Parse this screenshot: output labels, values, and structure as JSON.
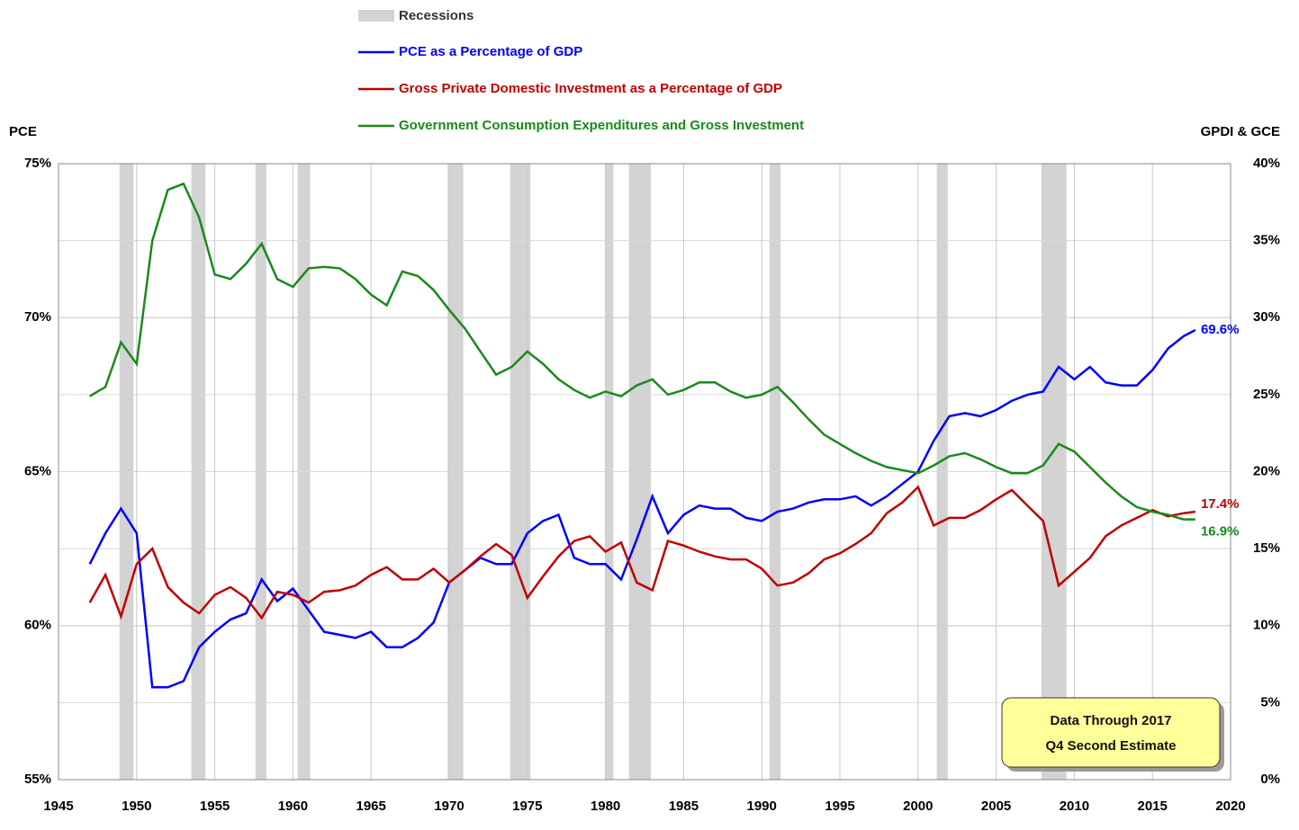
{
  "chart_data": {
    "type": "line",
    "y_label": "PCE",
    "y2_label": "GPDI & GCE",
    "xlim": [
      1945,
      2020
    ],
    "xticks": [
      1945,
      1950,
      1955,
      1960,
      1965,
      1970,
      1975,
      1980,
      1985,
      1990,
      1995,
      2000,
      2005,
      2010,
      2015,
      2020
    ],
    "ylim": [
      55,
      75
    ],
    "yticks": [
      {
        "value": 55,
        "label": "55%"
      },
      {
        "value": 60,
        "label": "60%"
      },
      {
        "value": 65,
        "label": "65%"
      },
      {
        "value": 70,
        "label": "70%"
      },
      {
        "value": 75,
        "label": "75%"
      }
    ],
    "y2lim": [
      0,
      40
    ],
    "y2ticks": [
      {
        "value": 0,
        "label": "0%"
      },
      {
        "value": 5,
        "label": "5%"
      },
      {
        "value": 10,
        "label": "10%"
      },
      {
        "value": 15,
        "label": "15%"
      },
      {
        "value": 20,
        "label": "20%"
      },
      {
        "value": 25,
        "label": "25%"
      },
      {
        "value": 30,
        "label": "30%"
      },
      {
        "value": 35,
        "label": "35%"
      },
      {
        "value": 40,
        "label": "40%"
      }
    ],
    "grid": true,
    "recessions": {
      "name": "Recessions",
      "color": "#d3d3d3",
      "periods": [
        [
          1948.9,
          1949.8
        ],
        [
          1953.5,
          1954.4
        ],
        [
          1957.6,
          1958.3
        ],
        [
          1960.3,
          1961.1
        ],
        [
          1969.9,
          1970.9
        ],
        [
          1973.9,
          1975.2
        ],
        [
          1980.0,
          1980.5
        ],
        [
          1981.5,
          1982.9
        ],
        [
          1990.5,
          1991.2
        ],
        [
          2001.2,
          2001.9
        ],
        [
          2007.9,
          2009.5
        ]
      ]
    },
    "x": [
      1947,
      1948,
      1949,
      1950,
      1951,
      1952,
      1953,
      1954,
      1955,
      1956,
      1957,
      1958,
      1959,
      1960,
      1961,
      1962,
      1963,
      1964,
      1965,
      1966,
      1967,
      1968,
      1969,
      1970,
      1971,
      1972,
      1973,
      1974,
      1975,
      1976,
      1977,
      1978,
      1979,
      1980,
      1981,
      1982,
      1983,
      1984,
      1985,
      1986,
      1987,
      1988,
      1989,
      1990,
      1991,
      1992,
      1993,
      1994,
      1995,
      1996,
      1997,
      1998,
      1999,
      2000,
      2001,
      2002,
      2003,
      2004,
      2005,
      2006,
      2007,
      2008,
      2009,
      2010,
      2011,
      2012,
      2013,
      2014,
      2015,
      2016,
      2017,
      2017.75
    ],
    "series": [
      {
        "name": "PCE as a Percentage of GDP",
        "color": "#0000ff",
        "axis": "y",
        "values": [
          62.0,
          63.0,
          63.8,
          63.0,
          58.0,
          58.0,
          58.2,
          59.3,
          59.8,
          60.2,
          60.4,
          61.5,
          60.8,
          61.2,
          60.5,
          59.8,
          59.7,
          59.6,
          59.8,
          59.3,
          59.3,
          59.6,
          60.1,
          61.4,
          61.8,
          62.2,
          62.0,
          62.0,
          63.0,
          63.4,
          63.6,
          62.2,
          62.0,
          62.0,
          61.5,
          62.8,
          64.2,
          63.0,
          63.6,
          63.9,
          63.8,
          63.8,
          63.5,
          63.4,
          63.7,
          63.8,
          64.0,
          64.1,
          64.1,
          64.2,
          63.9,
          64.2,
          64.6,
          65.0,
          66.0,
          66.8,
          66.9,
          66.8,
          67.0,
          67.3,
          67.5,
          67.6,
          68.4,
          68.0,
          68.4,
          67.9,
          67.8,
          67.8,
          68.3,
          69.0,
          69.4,
          69.6
        ],
        "value_labels": [
          null,
          null,
          null,
          null,
          null,
          null,
          null,
          null,
          null,
          null,
          null,
          null,
          null,
          null,
          null,
          null,
          null,
          null,
          null,
          null,
          null,
          null,
          null,
          null,
          null,
          null,
          null,
          null,
          null,
          null,
          null,
          null,
          null,
          null,
          null,
          null,
          null,
          null,
          null,
          null,
          null,
          null,
          null,
          null,
          null,
          null,
          null,
          null,
          null,
          null,
          null,
          null,
          null,
          null,
          null,
          null,
          null,
          null,
          null,
          null,
          null,
          null,
          null,
          null,
          null,
          null,
          null,
          null,
          null,
          null,
          null,
          "69.6%"
        ]
      },
      {
        "name": "Gross Private Domestic Investment as a Percentage of GDP",
        "color": "#c00000",
        "axis": "y2",
        "values": [
          11.5,
          13.3,
          10.6,
          14.0,
          15.0,
          12.5,
          11.5,
          10.8,
          12.0,
          12.5,
          11.8,
          10.5,
          12.2,
          12.0,
          11.5,
          12.2,
          12.3,
          12.6,
          13.3,
          13.8,
          13.0,
          13.0,
          13.7,
          12.8,
          13.6,
          14.5,
          15.3,
          14.6,
          11.8,
          13.2,
          14.5,
          15.5,
          15.8,
          14.8,
          15.4,
          12.8,
          12.3,
          15.5,
          15.2,
          14.8,
          14.5,
          14.3,
          14.3,
          13.7,
          12.6,
          12.8,
          13.4,
          14.3,
          14.7,
          15.3,
          16.0,
          17.3,
          18.0,
          19.0,
          16.5,
          17.0,
          17.0,
          17.5,
          18.2,
          18.8,
          17.8,
          16.8,
          12.6,
          13.5,
          14.4,
          15.8,
          16.5,
          17.0,
          17.5,
          17.1,
          17.3,
          17.4
        ],
        "value_labels": [
          null,
          null,
          null,
          null,
          null,
          null,
          null,
          null,
          null,
          null,
          null,
          null,
          null,
          null,
          null,
          null,
          null,
          null,
          null,
          null,
          null,
          null,
          null,
          null,
          null,
          null,
          null,
          null,
          null,
          null,
          null,
          null,
          null,
          null,
          null,
          null,
          null,
          null,
          null,
          null,
          null,
          null,
          null,
          null,
          null,
          null,
          null,
          null,
          null,
          null,
          null,
          null,
          null,
          null,
          null,
          null,
          null,
          null,
          null,
          null,
          null,
          null,
          null,
          null,
          null,
          null,
          null,
          null,
          null,
          null,
          null,
          "17.4%"
        ]
      },
      {
        "name": "Government Consumption Expenditures and Gross Investment",
        "color": "#1a8a1a",
        "axis": "y2",
        "values": [
          24.9,
          25.5,
          28.4,
          27.0,
          35.0,
          38.3,
          38.7,
          36.5,
          32.8,
          32.5,
          33.5,
          34.8,
          32.5,
          32.0,
          33.2,
          33.3,
          33.2,
          32.5,
          31.5,
          30.8,
          33.0,
          32.7,
          31.8,
          30.5,
          29.3,
          27.8,
          26.3,
          26.8,
          27.8,
          27.0,
          26.0,
          25.3,
          24.8,
          25.2,
          24.9,
          25.6,
          26.0,
          25.0,
          25.3,
          25.8,
          25.8,
          25.2,
          24.8,
          25.0,
          25.5,
          24.5,
          23.4,
          22.4,
          21.8,
          21.2,
          20.7,
          20.3,
          20.1,
          19.9,
          20.4,
          21.0,
          21.2,
          20.8,
          20.3,
          19.9,
          19.9,
          20.4,
          21.8,
          21.3,
          20.3,
          19.3,
          18.4,
          17.7,
          17.4,
          17.2,
          16.9,
          16.9
        ],
        "value_labels": [
          null,
          null,
          null,
          null,
          null,
          null,
          null,
          null,
          null,
          null,
          null,
          null,
          null,
          null,
          null,
          null,
          null,
          null,
          null,
          null,
          null,
          null,
          null,
          null,
          null,
          null,
          null,
          null,
          null,
          null,
          null,
          null,
          null,
          null,
          null,
          null,
          null,
          null,
          null,
          null,
          null,
          null,
          null,
          null,
          null,
          null,
          null,
          null,
          null,
          null,
          null,
          null,
          null,
          null,
          null,
          null,
          null,
          null,
          null,
          null,
          null,
          null,
          null,
          null,
          null,
          null,
          null,
          null,
          null,
          null,
          null,
          "16.9%"
        ]
      }
    ],
    "note": [
      "Data Through 2017",
      "Q4 Second Estimate"
    ]
  }
}
